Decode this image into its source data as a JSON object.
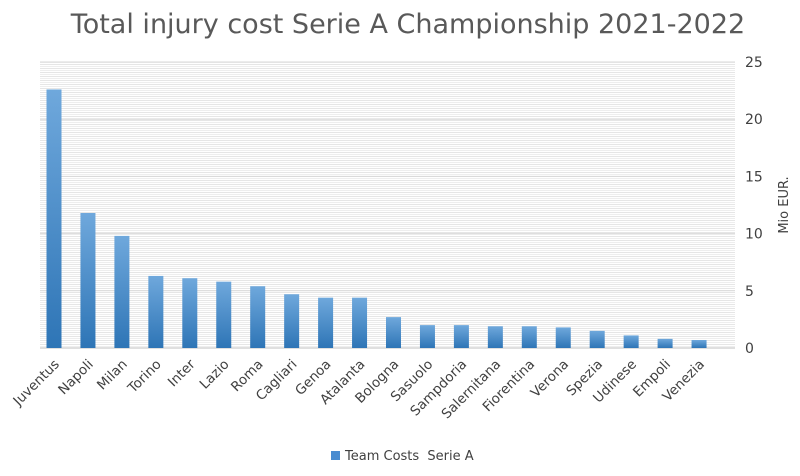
{
  "chart_data": {
    "type": "bar",
    "title": "Total injury cost Serie A Championship 2021-2022",
    "xlabel": "",
    "ylabel": "Mio EUR.",
    "ylim": [
      0,
      25
    ],
    "yticks": [
      0,
      5,
      10,
      15,
      20,
      25
    ],
    "y_axis_side": "right",
    "grid": true,
    "legend_position": "bottom",
    "bar_color": "#5B9BD5",
    "bar_color_dark": "#2E75B6",
    "categories": [
      "Juventus",
      "Napoli",
      "Milan",
      "Torino",
      "Inter",
      "Lazio",
      "Roma",
      "Cagliari",
      "Genoa",
      "Atalanta",
      "Bologna",
      "Sasuolo",
      "Sampdoria",
      "Salernitana",
      "Fiorentina",
      "Verona",
      "Spezia",
      "Udinese",
      "Empoli",
      "Venezia"
    ],
    "series": [
      {
        "name": "Team Costs  Serie A",
        "values": [
          22.6,
          11.8,
          9.8,
          6.3,
          6.1,
          5.8,
          5.4,
          4.7,
          4.4,
          4.4,
          2.7,
          2.0,
          2.0,
          1.9,
          1.9,
          1.8,
          1.5,
          1.1,
          0.8,
          0.7
        ]
      }
    ]
  }
}
